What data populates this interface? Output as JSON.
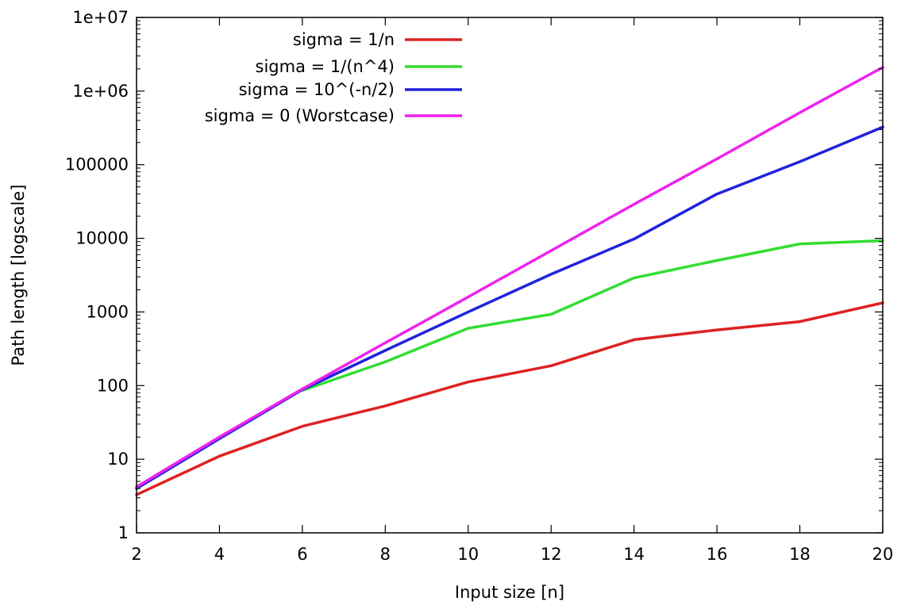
{
  "chart_data": {
    "type": "line",
    "xlabel": "Input size [n]",
    "ylabel": "Path length [logscale]",
    "x_scale": "linear",
    "y_scale": "log",
    "xlim": [
      2,
      20
    ],
    "ylim": [
      1,
      10000000
    ],
    "x_ticks": [
      2,
      4,
      6,
      8,
      10,
      12,
      14,
      16,
      18,
      20
    ],
    "y_ticks": [
      {
        "value": 1,
        "label": "1"
      },
      {
        "value": 10,
        "label": "10"
      },
      {
        "value": 100,
        "label": "100"
      },
      {
        "value": 1000,
        "label": "1000"
      },
      {
        "value": 10000,
        "label": "10000"
      },
      {
        "value": 100000,
        "label": "100000"
      },
      {
        "value": 1000000,
        "label": "1e+06"
      },
      {
        "value": 10000000,
        "label": "1e+07"
      }
    ],
    "legend_position": "top-left",
    "series": [
      {
        "name": "sigma = 1/n",
        "color": "#dd2222",
        "points": [
          [
            2,
            3.3
          ],
          [
            4,
            11
          ],
          [
            6,
            28
          ],
          [
            8,
            53
          ],
          [
            10,
            112
          ],
          [
            12,
            186
          ],
          [
            14,
            420
          ],
          [
            16,
            570
          ],
          [
            18,
            740
          ],
          [
            20,
            1330
          ]
        ]
      },
      {
        "name": "sigma = 1/(n^4)",
        "color": "#33dd33",
        "points": [
          [
            6,
            86
          ],
          [
            8,
            210
          ],
          [
            10,
            600
          ],
          [
            12,
            930
          ],
          [
            14,
            2900
          ],
          [
            16,
            5000
          ],
          [
            18,
            8400
          ],
          [
            20,
            9300
          ]
        ]
      },
      {
        "name": "sigma = 10^(-n/2)",
        "color": "#2222dd",
        "points": [
          [
            2,
            4
          ],
          [
            4,
            19
          ],
          [
            6,
            88
          ],
          [
            8,
            300
          ],
          [
            10,
            1000
          ],
          [
            12,
            3250
          ],
          [
            14,
            9800
          ],
          [
            16,
            40000
          ],
          [
            18,
            110000
          ],
          [
            20,
            325000
          ]
        ]
      },
      {
        "name": "sigma = 0 (Worstcase)",
        "color": "#ee22ee",
        "points": [
          [
            2,
            4.2
          ],
          [
            4,
            20
          ],
          [
            6,
            90
          ],
          [
            8,
            380
          ],
          [
            10,
            1600
          ],
          [
            12,
            6800
          ],
          [
            14,
            29000
          ],
          [
            16,
            120000
          ],
          [
            18,
            510000
          ],
          [
            20,
            2100000
          ]
        ]
      }
    ]
  }
}
